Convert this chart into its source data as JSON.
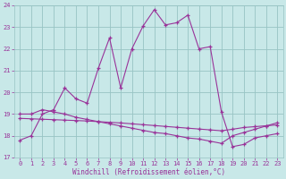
{
  "xlabel": "Windchill (Refroidissement éolien,°C)",
  "xlim_min": -0.5,
  "xlim_max": 23.5,
  "ylim_min": 17,
  "ylim_max": 24,
  "yticks": [
    17,
    18,
    19,
    20,
    21,
    22,
    23,
    24
  ],
  "xticks": [
    0,
    1,
    2,
    3,
    4,
    5,
    6,
    7,
    8,
    9,
    10,
    11,
    12,
    13,
    14,
    15,
    16,
    17,
    18,
    19,
    20,
    21,
    22,
    23
  ],
  "bg_color": "#c8e8e8",
  "grid_color": "#98c4c4",
  "line_color": "#993399",
  "curve1_x": [
    0,
    1,
    2,
    3,
    4,
    5,
    6,
    7,
    8,
    9,
    10,
    11,
    12,
    13,
    14,
    15,
    16,
    17,
    18,
    19,
    20,
    21,
    22,
    23
  ],
  "curve1_y": [
    17.8,
    18.0,
    19.0,
    19.2,
    20.2,
    19.7,
    19.5,
    21.1,
    22.5,
    20.2,
    22.0,
    23.05,
    23.8,
    23.1,
    23.2,
    23.55,
    22.0,
    22.1,
    19.1,
    17.5,
    17.6,
    17.9,
    18.0,
    18.1
  ],
  "curve2_x": [
    0,
    1,
    2,
    3,
    4,
    5,
    6,
    7,
    8,
    9,
    10,
    11,
    12,
    13,
    14,
    15,
    16,
    17,
    18,
    19,
    20,
    21,
    22,
    23
  ],
  "curve2_y": [
    19.0,
    19.0,
    19.2,
    19.1,
    19.0,
    18.85,
    18.75,
    18.65,
    18.55,
    18.45,
    18.35,
    18.25,
    18.15,
    18.1,
    18.0,
    17.9,
    17.85,
    17.75,
    17.65,
    18.0,
    18.15,
    18.3,
    18.45,
    18.6
  ],
  "curve3_x": [
    0,
    1,
    2,
    3,
    4,
    5,
    6,
    7,
    8,
    9,
    10,
    11,
    12,
    13,
    14,
    15,
    16,
    17,
    18,
    19,
    20,
    21,
    22,
    23
  ],
  "curve3_y": [
    18.8,
    18.78,
    18.76,
    18.74,
    18.72,
    18.7,
    18.68,
    18.65,
    18.62,
    18.59,
    18.55,
    18.51,
    18.47,
    18.43,
    18.39,
    18.35,
    18.31,
    18.27,
    18.23,
    18.3,
    18.38,
    18.42,
    18.46,
    18.5
  ],
  "font_color": "#993399",
  "tick_fontsize": 5,
  "xlabel_fontsize": 5.5
}
